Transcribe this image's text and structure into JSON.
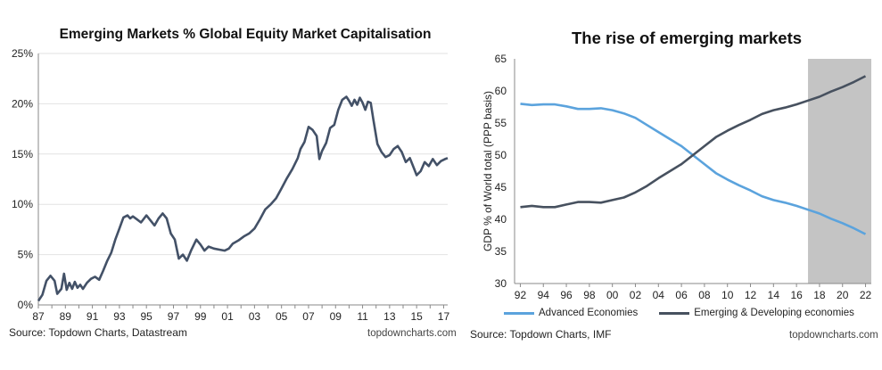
{
  "colors": {
    "left_line": "#435167",
    "advanced": "#5ba3dd",
    "emerging": "#47515f",
    "shade": "#c4c4c4",
    "axis": "#8a8a8a"
  },
  "chart_data": [
    {
      "type": "line",
      "title": "Emerging Markets % Global Equity Market Capitalisation",
      "xlabel": "",
      "ylabel": "",
      "x_tick_labels": [
        "87",
        "89",
        "91",
        "93",
        "95",
        "97",
        "99",
        "01",
        "03",
        "05",
        "07",
        "09",
        "11",
        "13",
        "15",
        "17"
      ],
      "y_tick_labels": [
        "0%",
        "5%",
        "10%",
        "15%",
        "20%",
        "25%"
      ],
      "xlim": [
        1987,
        2017.3
      ],
      "ylim": [
        0,
        25
      ],
      "grid": "horizontal",
      "legend": "none",
      "source": "Source: Topdown Charts, Datastream",
      "brand": "topdowncharts.com",
      "series": [
        {
          "x": [
            1987.0,
            1987.3,
            1987.6,
            1987.9,
            1988.2,
            1988.4,
            1988.7,
            1988.9,
            1989.1,
            1989.3,
            1989.5,
            1989.7,
            1989.9,
            1990.1,
            1990.3,
            1990.6,
            1990.9,
            1991.2,
            1991.5,
            1991.8,
            1992.1,
            1992.4,
            1992.7,
            1993.0,
            1993.3,
            1993.6,
            1993.8,
            1994.0,
            1994.3,
            1994.6,
            1995.0,
            1995.3,
            1995.6,
            1995.9,
            1996.2,
            1996.5,
            1996.8,
            1997.1,
            1997.4,
            1997.7,
            1998.0,
            1998.3,
            1998.7,
            1999.0,
            1999.3,
            1999.6,
            2000.0,
            2000.4,
            2000.8,
            2001.1,
            2001.4,
            2001.8,
            2002.2,
            2002.6,
            2003.0,
            2003.4,
            2003.8,
            2004.2,
            2004.6,
            2005.0,
            2005.4,
            2005.8,
            2006.2,
            2006.4,
            2006.7,
            2007.0,
            2007.3,
            2007.6,
            2007.8,
            2008.0,
            2008.3,
            2008.6,
            2008.9,
            2009.2,
            2009.5,
            2009.8,
            2010.0,
            2010.2,
            2010.4,
            2010.6,
            2010.8,
            2011.0,
            2011.2,
            2011.4,
            2011.6,
            2011.8,
            2012.1,
            2012.4,
            2012.7,
            2013.0,
            2013.3,
            2013.6,
            2013.9,
            2014.2,
            2014.5,
            2014.8,
            2015.0,
            2015.3,
            2015.6,
            2015.9,
            2016.2,
            2016.5,
            2016.8,
            2017.1,
            2017.3
          ],
          "values": [
            0.4,
            1.0,
            2.4,
            2.9,
            2.4,
            1.1,
            1.6,
            3.1,
            1.5,
            2.2,
            1.6,
            2.3,
            1.7,
            2.0,
            1.6,
            2.2,
            2.6,
            2.8,
            2.5,
            3.4,
            4.4,
            5.2,
            6.5,
            7.6,
            8.7,
            8.9,
            8.6,
            8.8,
            8.5,
            8.2,
            8.9,
            8.4,
            7.9,
            8.6,
            9.1,
            8.6,
            7.1,
            6.5,
            4.6,
            5.0,
            4.4,
            5.4,
            6.5,
            6.0,
            5.4,
            5.8,
            5.6,
            5.5,
            5.4,
            5.6,
            6.1,
            6.4,
            6.8,
            7.1,
            7.6,
            8.5,
            9.5,
            10.0,
            10.6,
            11.6,
            12.6,
            13.5,
            14.6,
            15.5,
            16.2,
            17.7,
            17.4,
            16.8,
            14.5,
            15.3,
            16.1,
            17.6,
            17.9,
            19.4,
            20.4,
            20.7,
            20.3,
            19.8,
            20.4,
            19.9,
            20.6,
            20.1,
            19.4,
            20.2,
            20.1,
            18.4,
            16.0,
            15.2,
            14.7,
            14.9,
            15.5,
            15.8,
            15.2,
            14.2,
            14.6,
            13.6,
            12.9,
            13.3,
            14.2,
            13.8,
            14.5,
            13.9,
            14.3,
            14.5,
            14.6
          ]
        }
      ]
    },
    {
      "type": "line",
      "title": "The rise of emerging markets",
      "xlabel": "",
      "ylabel": "GDP % of World total (PPP basis)",
      "x_tick_labels": [
        "92",
        "94",
        "96",
        "98",
        "00",
        "02",
        "04",
        "06",
        "08",
        "10",
        "12",
        "14",
        "16",
        "18",
        "20",
        "22"
      ],
      "y_tick_labels": [
        "30",
        "35",
        "40",
        "45",
        "50",
        "55",
        "60",
        "65"
      ],
      "xlim": [
        1991.5,
        2022.5
      ],
      "ylim": [
        30,
        65
      ],
      "grid": "off",
      "forecast_shade_from": 2017,
      "legend": "bottom",
      "source": "Source: Topdown Charts, IMF",
      "brand": "topdowncharts.com",
      "x": [
        1992,
        1993,
        1994,
        1995,
        1996,
        1997,
        1998,
        1999,
        2000,
        2001,
        2002,
        2003,
        2004,
        2005,
        2006,
        2007,
        2008,
        2009,
        2010,
        2011,
        2012,
        2013,
        2014,
        2015,
        2016,
        2017,
        2018,
        2019,
        2020,
        2021,
        2022
      ],
      "series": [
        {
          "name": "Advanced Economies",
          "color_key": "advanced",
          "values": [
            58.0,
            57.8,
            57.9,
            57.9,
            57.6,
            57.2,
            57.2,
            57.3,
            57.0,
            56.5,
            55.8,
            54.7,
            53.6,
            52.5,
            51.4,
            50.0,
            48.6,
            47.2,
            46.2,
            45.3,
            44.5,
            43.6,
            43.0,
            42.6,
            42.1,
            41.5,
            40.9,
            40.1,
            39.4,
            38.6,
            37.7
          ]
        },
        {
          "name": "Emerging & Developing economies",
          "color_key": "emerging",
          "values": [
            41.9,
            42.1,
            41.9,
            41.9,
            42.3,
            42.7,
            42.7,
            42.6,
            43.0,
            43.4,
            44.2,
            45.2,
            46.4,
            47.5,
            48.6,
            50.0,
            51.4,
            52.8,
            53.8,
            54.7,
            55.5,
            56.4,
            57.0,
            57.4,
            57.9,
            58.5,
            59.1,
            59.9,
            60.6,
            61.4,
            62.3
          ]
        }
      ]
    }
  ]
}
